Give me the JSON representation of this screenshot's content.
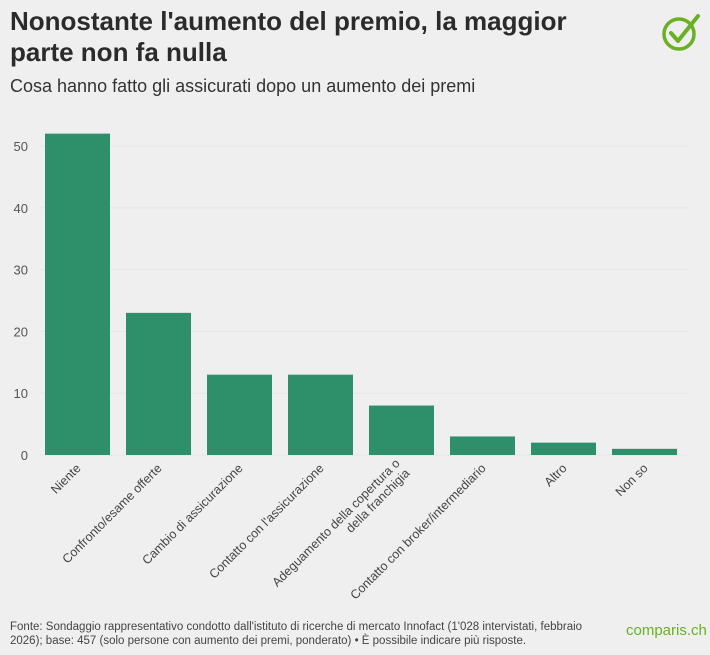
{
  "header": {
    "title": "Nonostante l'aumento del premio, la maggior parte non fa nulla",
    "subtitle": "Cosa hanno fatto gli assicurati dopo un aumento dei premi",
    "logo_icon": "checkmark-circle-icon"
  },
  "footer": {
    "source": "Fonte: Sondaggio rappresentativo condotto dall'istituto di ricerche di mercato Innofact (1'028 intervistati, febbraio 2026); base: 457 (solo persone con aumento dei premi, ponderato) • È possibile indicare più risposte.",
    "brand": "comparis.ch"
  },
  "colors": {
    "bar": "#2e8f6b",
    "brand": "#6ab023"
  },
  "chart_data": {
    "type": "bar",
    "categories": [
      "Niente",
      "Confronto/esame offerte",
      "Cambio di assicurazione",
      "Contatto con l'assicurazione",
      "Adeguamento della copertura o della franchigia",
      "Contatto con broker/intermediario",
      "Altro",
      "Non so"
    ],
    "values": [
      52,
      23,
      13,
      13,
      8,
      3,
      2,
      1
    ],
    "ylim": [
      0,
      52
    ],
    "yticks": [
      0,
      10,
      20,
      30,
      40,
      50
    ],
    "grid": true,
    "xlabel": "",
    "ylabel": ""
  }
}
